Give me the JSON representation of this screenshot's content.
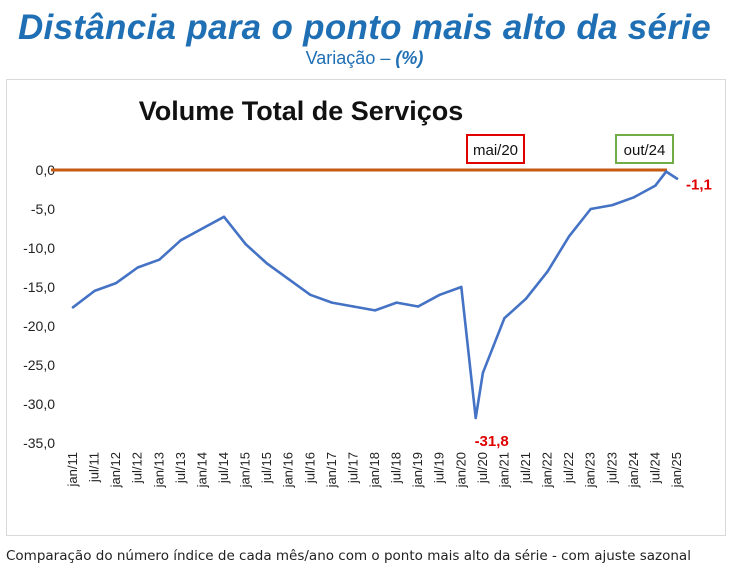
{
  "header": {
    "title": "Distância para o ponto mais alto da série",
    "subtitle_prefix": "Variação –",
    "subtitle_unit": "(%)"
  },
  "footnote": "Comparação do número índice de cada mês/ano com o ponto mais alto da série - com ajuste sazonal",
  "colors": {
    "title": "#1f6fb4",
    "series": "#4472c4",
    "reference_line": "#c55a11",
    "label_red": "#e00000",
    "box_red": "#e00000",
    "box_green": "#70ad47"
  },
  "chart_data": {
    "type": "line",
    "title": "Volume Total de Serviços",
    "xlabel": "",
    "ylabel": "",
    "ylim": [
      -35,
      0
    ],
    "yticks": [
      "0,0",
      "-5,0",
      "-10,0",
      "-15,0",
      "-20,0",
      "-25,0",
      "-30,0",
      "-35,0"
    ],
    "xticks": [
      "jan/11",
      "jul/11",
      "jan/12",
      "jul/12",
      "jan/13",
      "jul/13",
      "jan/14",
      "jul/14",
      "jan/15",
      "jul/15",
      "jan/16",
      "jul/16",
      "jan/17",
      "jul/17",
      "jan/18",
      "jul/18",
      "jan/19",
      "jul/19",
      "jan/20",
      "jul/20",
      "jan/21",
      "jul/21",
      "jan/22",
      "jul/22",
      "jan/23",
      "jul/23",
      "jan/24",
      "jul/24",
      "jan/25"
    ],
    "grid": false,
    "reference_line": 0,
    "series": [
      {
        "points": [
          [
            "jan/11",
            -17.6
          ],
          [
            "jul/11",
            -15.5
          ],
          [
            "jan/12",
            -14.5
          ],
          [
            "jul/12",
            -12.5
          ],
          [
            "jan/13",
            -11.5
          ],
          [
            "jul/13",
            -9
          ],
          [
            "jan/14",
            -7.5
          ],
          [
            "jul/14",
            -6
          ],
          [
            "jan/15",
            -9.5
          ],
          [
            "jul/15",
            -12
          ],
          [
            "jan/16",
            -14
          ],
          [
            "jul/16",
            -16
          ],
          [
            "jan/17",
            -17
          ],
          [
            "jul/17",
            -17.5
          ],
          [
            "jan/18",
            -18
          ],
          [
            "jul/18",
            -17
          ],
          [
            "jan/19",
            -17.5
          ],
          [
            "jul/19",
            -16
          ],
          [
            "jan/20",
            -15
          ],
          [
            "mai/20",
            -31.8
          ],
          [
            "jul/20",
            -26
          ],
          [
            "jan/21",
            -19
          ],
          [
            "jul/21",
            -16.5
          ],
          [
            "jan/22",
            -13
          ],
          [
            "jul/22",
            -8.5
          ],
          [
            "jan/23",
            -5
          ],
          [
            "jul/23",
            -4.5
          ],
          [
            "jan/24",
            -3.5
          ],
          [
            "jul/24",
            -2
          ],
          [
            "out/24",
            -0.2
          ],
          [
            "jan/25",
            -1.1
          ]
        ]
      }
    ],
    "annotations": [
      {
        "label": "mai/20",
        "box": "red"
      },
      {
        "label": "out/24",
        "box": "green"
      },
      {
        "label": "-31,8",
        "at": "mai/20",
        "value": -31.8
      },
      {
        "label": "-1,1",
        "at": "jan/25",
        "value": -1.1
      }
    ]
  }
}
